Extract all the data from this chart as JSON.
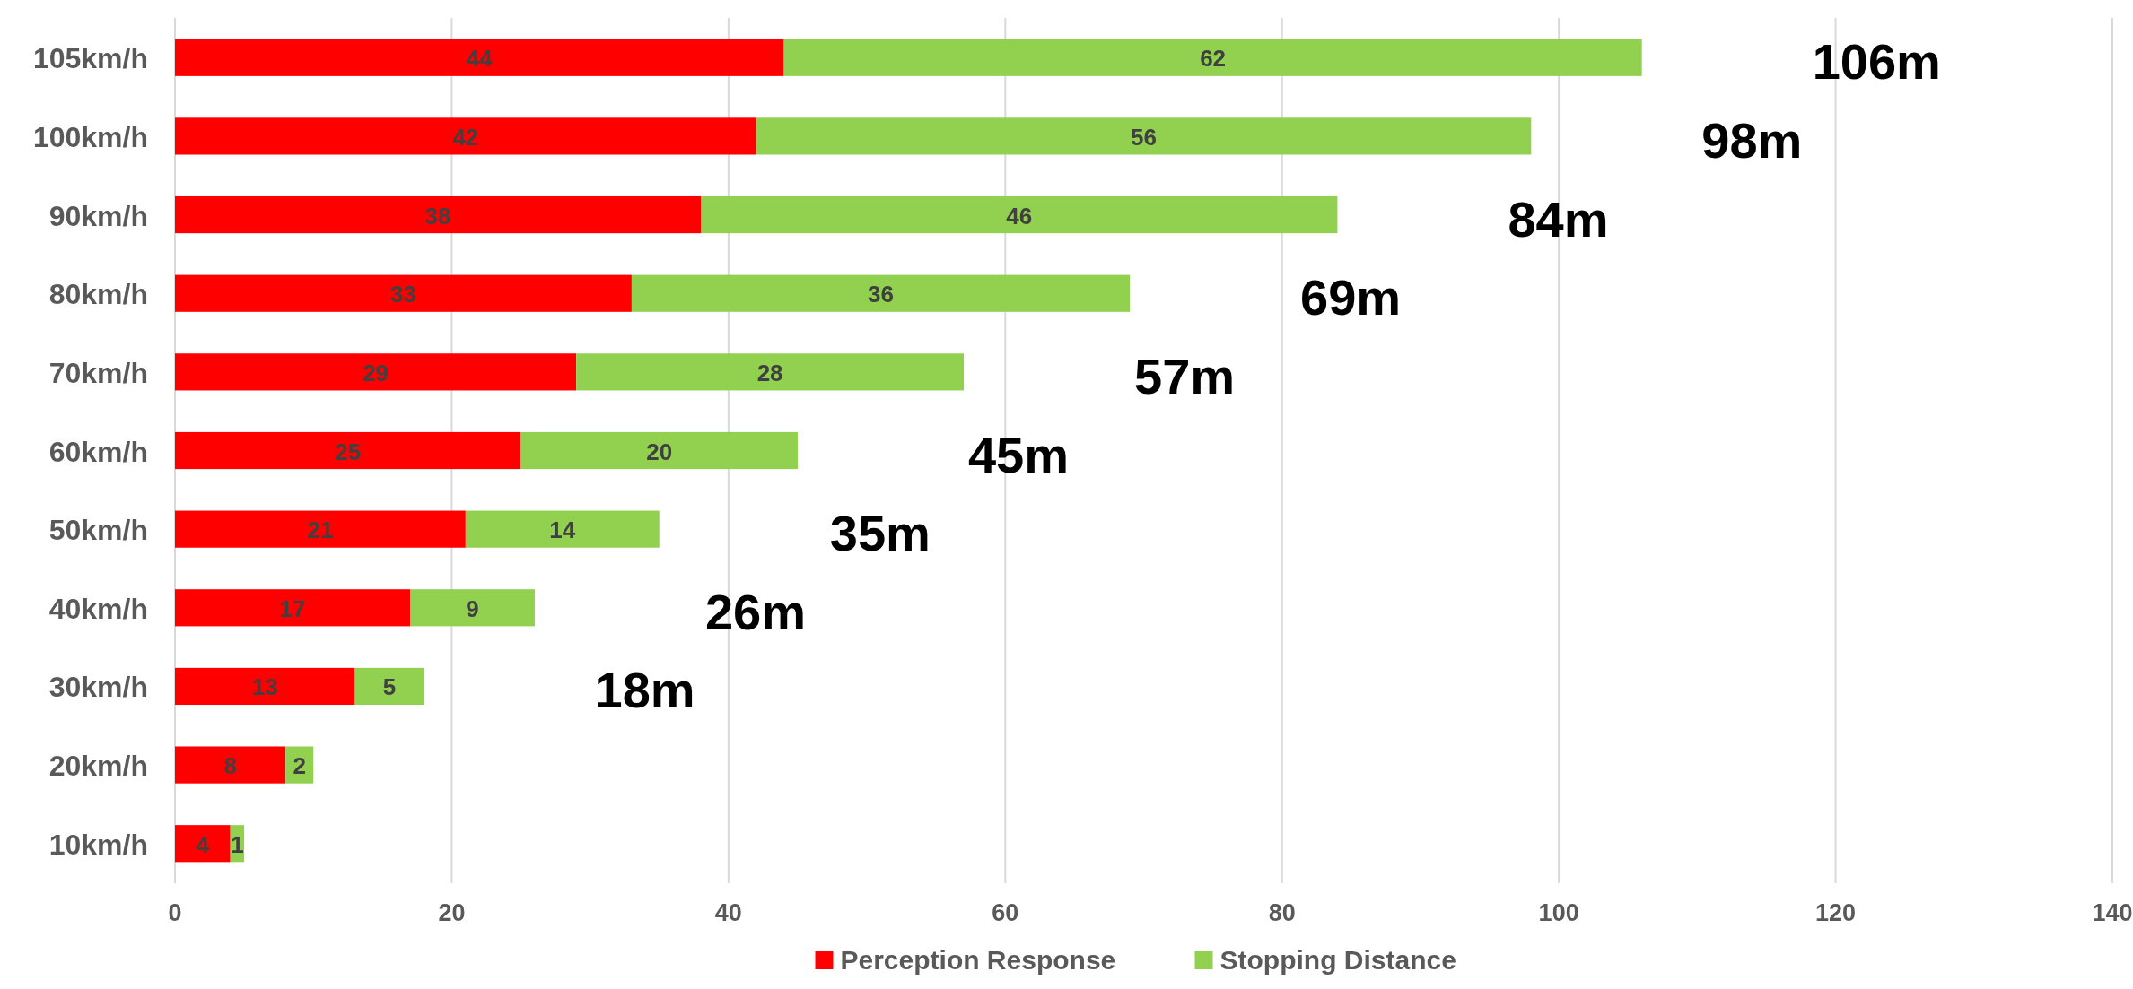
{
  "chart_data": {
    "type": "bar",
    "orientation": "horizontal",
    "stacked": true,
    "categories": [
      "105km/h",
      "100km/h",
      "90km/h",
      "80km/h",
      "70km/h",
      "60km/h",
      "50km/h",
      "40km/h",
      "30km/h",
      "20km/h",
      "10km/h"
    ],
    "series": [
      {
        "name": "Perception Response",
        "color": "#ff0000",
        "values": [
          44,
          42,
          38,
          33,
          29,
          25,
          21,
          17,
          13,
          8,
          4
        ]
      },
      {
        "name": "Stopping Distance",
        "color": "#92d050",
        "values": [
          62,
          56,
          46,
          36,
          28,
          20,
          14,
          9,
          5,
          2,
          1
        ]
      }
    ],
    "xlim": [
      0,
      140
    ],
    "xticks": [
      0,
      20,
      40,
      60,
      80,
      100,
      120,
      140
    ],
    "grid": "x",
    "legend": "bottom",
    "data_labels": true,
    "annotations": [
      "106m",
      "98m",
      "84m",
      "69m",
      "57m",
      "45m",
      "35m",
      "26m",
      "18m"
    ]
  }
}
